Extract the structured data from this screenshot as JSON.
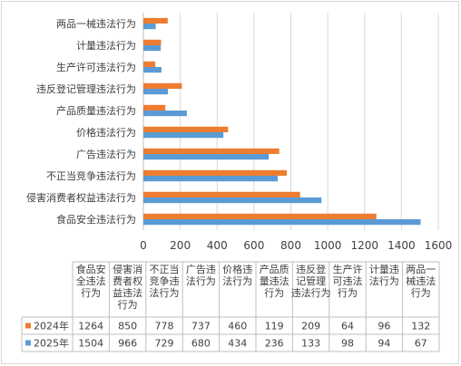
{
  "chart_data": {
    "type": "bar",
    "orientation": "horizontal",
    "categories": [
      "食品安全违法行为",
      "侵害消费者权益违法行为",
      "不正当竞争违法行为",
      "广告违法行为",
      "价格违法行为",
      "产品质量违法行为",
      "违反登记管理违法行为",
      "生产许可违法行为",
      "计量违法行为",
      "两品一械违法行为"
    ],
    "table_headers": [
      "食品安\n全违法\n行为",
      "侵害消\n费者权\n益违法\n行为",
      "不正当\n竞争违\n法行为",
      "广告违\n法行为",
      "价格违\n法行为",
      "产品质\n量违法\n行为",
      "违反登\n记管理\n违法行为",
      "生产许\n可违法\n行为",
      "计量违\n法行为",
      "两品一\n械违法\n行为"
    ],
    "series": [
      {
        "name": "2024年",
        "color": "#ed7d31",
        "values": [
          1264,
          850,
          778,
          737,
          460,
          119,
          209,
          64,
          96,
          132
        ]
      },
      {
        "name": "2025年",
        "color": "#5b9bd5",
        "values": [
          1504,
          966,
          729,
          680,
          434,
          236,
          133,
          98,
          94,
          67
        ]
      }
    ],
    "xlim": [
      0,
      1600
    ],
    "xticks": [
      "0",
      "200",
      "400",
      "600",
      "800",
      "1000",
      "1200",
      "1400",
      "1600"
    ],
    "grid": true,
    "legend": "table-bottom"
  }
}
